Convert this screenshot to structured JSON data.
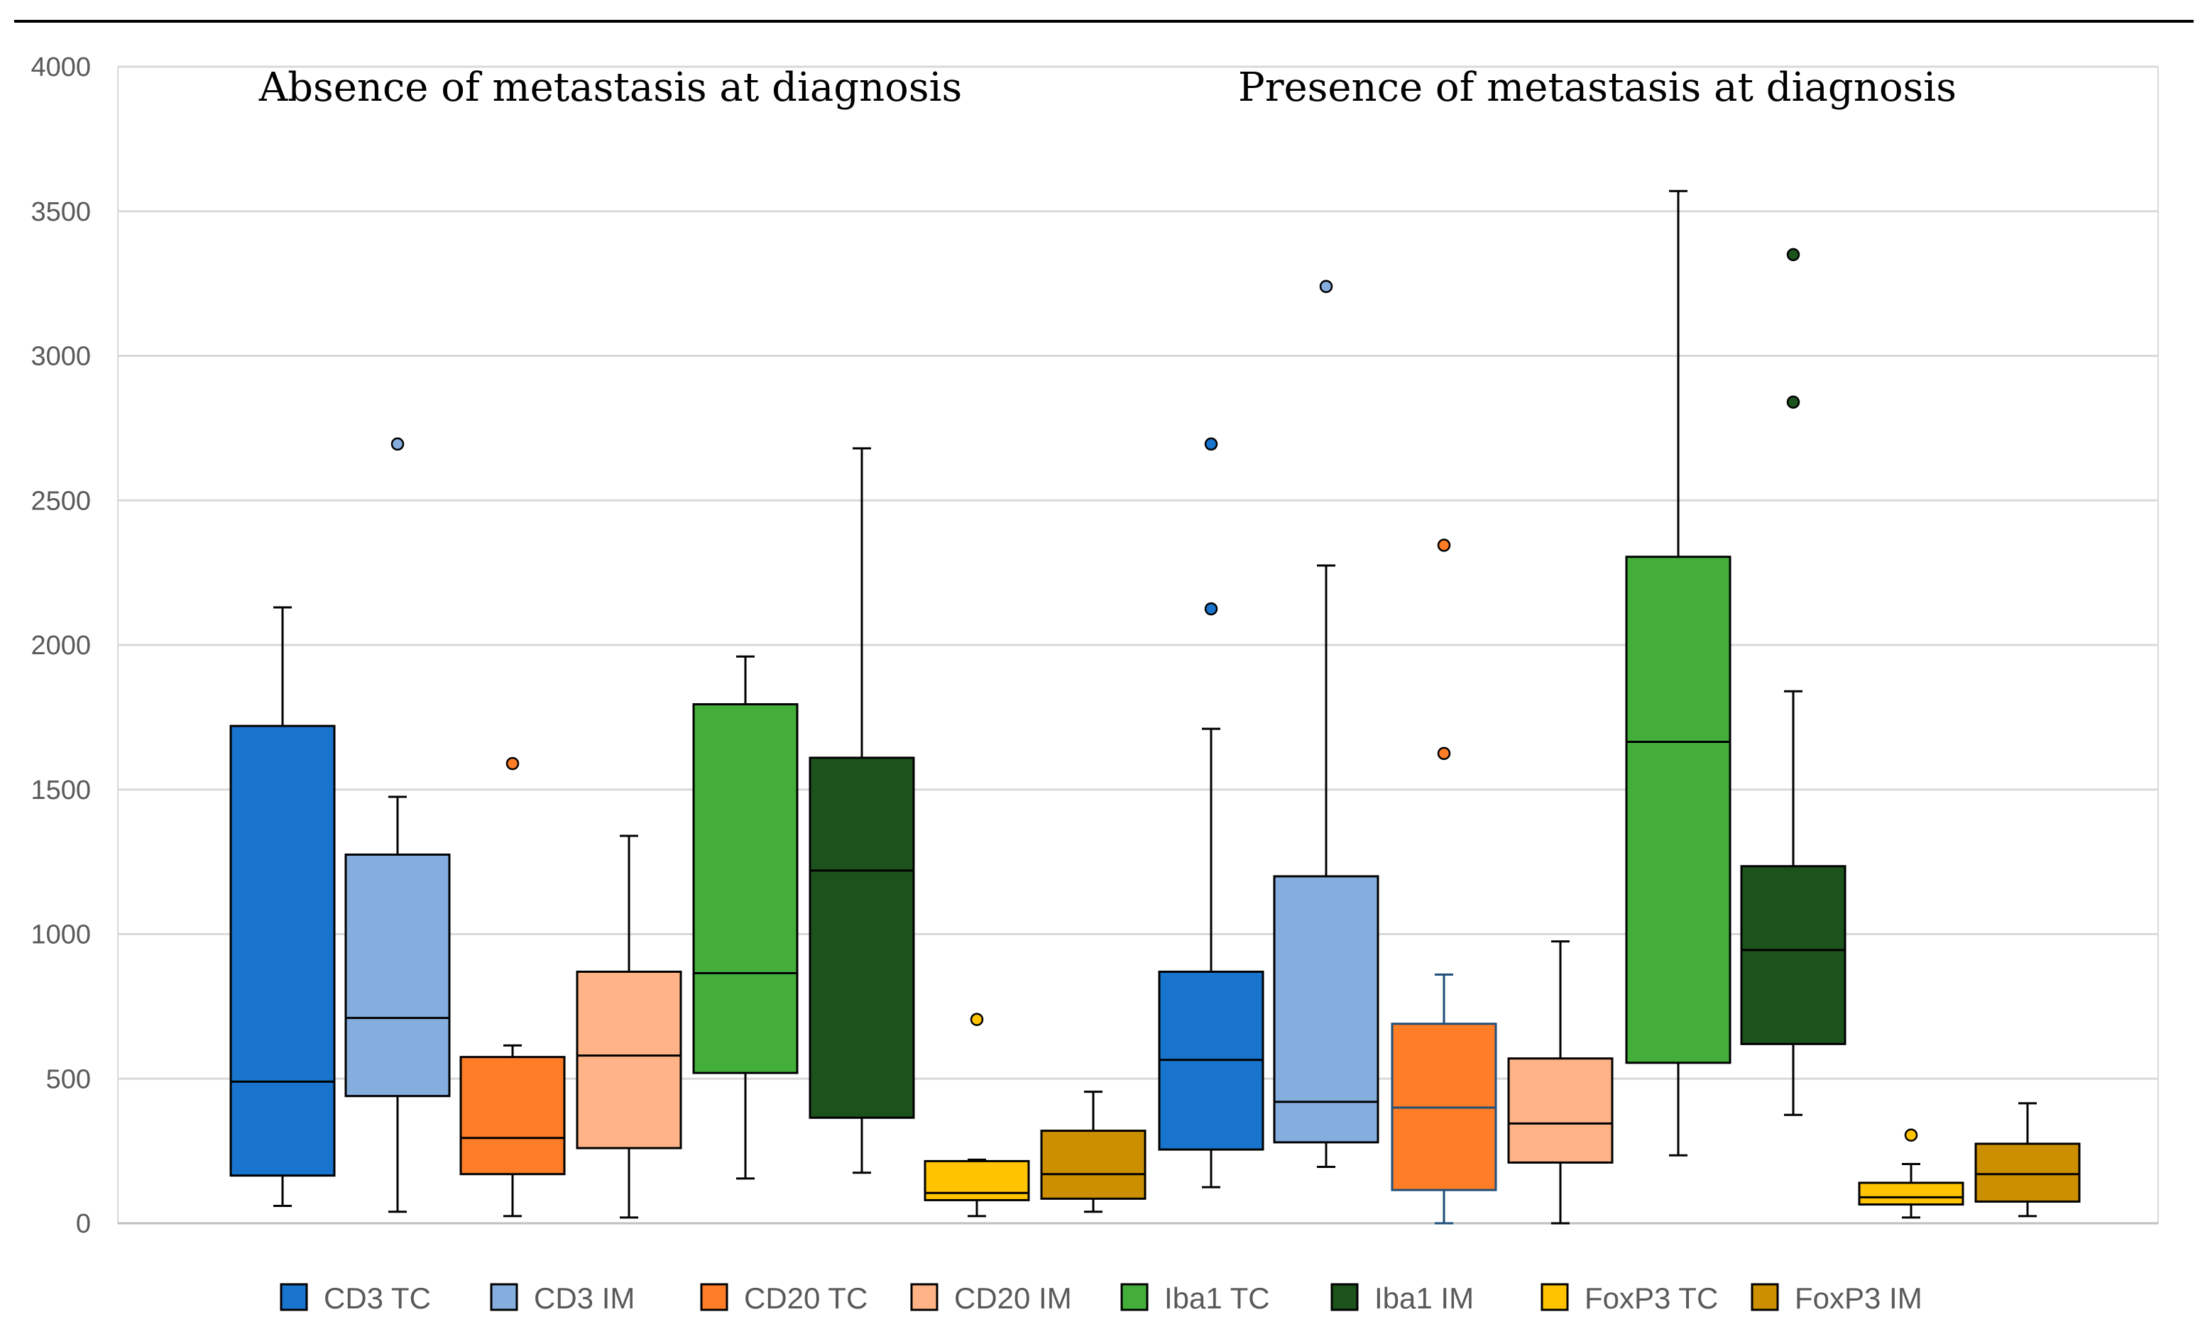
{
  "chart_data": {
    "type": "boxplot",
    "title": "",
    "xlabel": "",
    "ylabel": "",
    "ylim": [
      0,
      4000
    ],
    "yticks": [
      0,
      500,
      1000,
      1500,
      2000,
      2500,
      3000,
      3500,
      4000
    ],
    "groups": [
      "Absence of metastasis at diagnosis",
      "Presence of metastasis at diagnosis"
    ],
    "legend_position": "bottom",
    "series": [
      {
        "name": "CD3 TC",
        "color": "#1874CD",
        "boxes": [
          {
            "min": 60,
            "q1": 165,
            "median": 490,
            "q3": 1720,
            "max": 2130,
            "outliers": []
          },
          {
            "min": 125,
            "q1": 255,
            "median": 565,
            "q3": 870,
            "max": 1710,
            "outliers": [
              2125,
              2695
            ]
          }
        ]
      },
      {
        "name": "CD3 IM",
        "color": "#85AEDF",
        "boxes": [
          {
            "min": 40,
            "q1": 440,
            "median": 710,
            "q3": 1275,
            "max": 1475,
            "outliers": [
              2695
            ]
          },
          {
            "min": 195,
            "q1": 280,
            "median": 420,
            "q3": 1200,
            "max": 2275,
            "outliers": [
              3240
            ]
          }
        ]
      },
      {
        "name": "CD20 TC",
        "color": "#FF7D26",
        "boxes": [
          {
            "min": 25,
            "q1": 170,
            "median": 295,
            "q3": 575,
            "max": 615,
            "outliers": [
              1590
            ]
          },
          {
            "min": 0,
            "q1": 115,
            "median": 400,
            "q3": 690,
            "max": 860,
            "outliers": [
              1625,
              2345
            ]
          }
        ]
      },
      {
        "name": "CD20 IM",
        "color": "#FFB387",
        "boxes": [
          {
            "min": 20,
            "q1": 260,
            "median": 580,
            "q3": 870,
            "max": 1340,
            "outliers": []
          },
          {
            "min": 0,
            "q1": 210,
            "median": 345,
            "q3": 570,
            "max": 975,
            "outliers": []
          }
        ]
      },
      {
        "name": "Iba1 TC",
        "color": "#43AF3A",
        "boxes": [
          {
            "min": 155,
            "q1": 520,
            "median": 865,
            "q3": 1795,
            "max": 1960,
            "outliers": []
          },
          {
            "min": 235,
            "q1": 555,
            "median": 1665,
            "q3": 2305,
            "max": 3570,
            "outliers": []
          }
        ]
      },
      {
        "name": "Iba1 IM",
        "color": "#1C521C",
        "boxes": [
          {
            "min": 175,
            "q1": 365,
            "median": 1220,
            "q3": 1610,
            "max": 2680,
            "outliers": []
          },
          {
            "min": 375,
            "q1": 620,
            "median": 945,
            "q3": 1235,
            "max": 1840,
            "outliers": [
              2840,
              3350
            ]
          }
        ]
      },
      {
        "name": "FoxP3 TC",
        "color": "#FFC300",
        "boxes": [
          {
            "min": 25,
            "q1": 80,
            "median": 105,
            "q3": 215,
            "max": 220,
            "outliers": [
              705
            ]
          },
          {
            "min": 20,
            "q1": 65,
            "median": 90,
            "q3": 140,
            "max": 205,
            "outliers": [
              305
            ]
          }
        ]
      },
      {
        "name": "FoxP3 IM",
        "color": "#CC8F00",
        "boxes": [
          {
            "min": 40,
            "q1": 85,
            "median": 170,
            "q3": 320,
            "max": 455,
            "outliers": []
          },
          {
            "min": 25,
            "q1": 75,
            "median": 170,
            "q3": 275,
            "max": 415,
            "outliers": []
          }
        ]
      }
    ]
  }
}
